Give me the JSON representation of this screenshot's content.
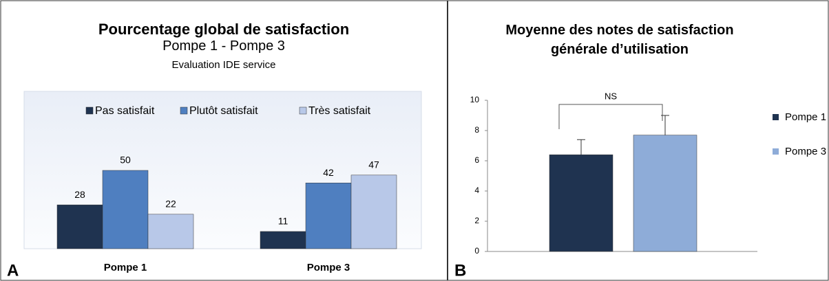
{
  "chart_data": [
    {
      "type": "bar",
      "panel_label": "A",
      "title": "Pourcentage global de satisfaction",
      "subtitle": "Pompe 1 - Pompe 3",
      "subtitle2": "Evaluation IDE service",
      "categories": [
        "Pompe 1",
        "Pompe 3"
      ],
      "series": [
        {
          "name": "Pas satisfait",
          "color": "#1f3350",
          "values": [
            28,
            11
          ]
        },
        {
          "name": "Plutôt satisfait",
          "color": "#4f7fc0",
          "values": [
            50,
            42
          ]
        },
        {
          "name": "Très satisfait",
          "color": "#b8c8e8",
          "values": [
            22,
            47
          ]
        }
      ],
      "legend": "top"
    },
    {
      "type": "bar",
      "panel_label": "B",
      "title": "Moyenne des notes de satisfaction générale d’utilisation",
      "annotation": "NS",
      "series": [
        {
          "name": "Pompe 1",
          "color": "#1f3350",
          "values": [
            6.4
          ],
          "errors": [
            1.0
          ]
        },
        {
          "name": "Pompe 3",
          "color": "#8eacd8",
          "values": [
            7.7
          ],
          "errors": [
            1.3
          ]
        }
      ],
      "ylim": [
        0,
        10
      ],
      "yticks": [
        0,
        2,
        4,
        6,
        8,
        10
      ],
      "legend": "right"
    }
  ]
}
